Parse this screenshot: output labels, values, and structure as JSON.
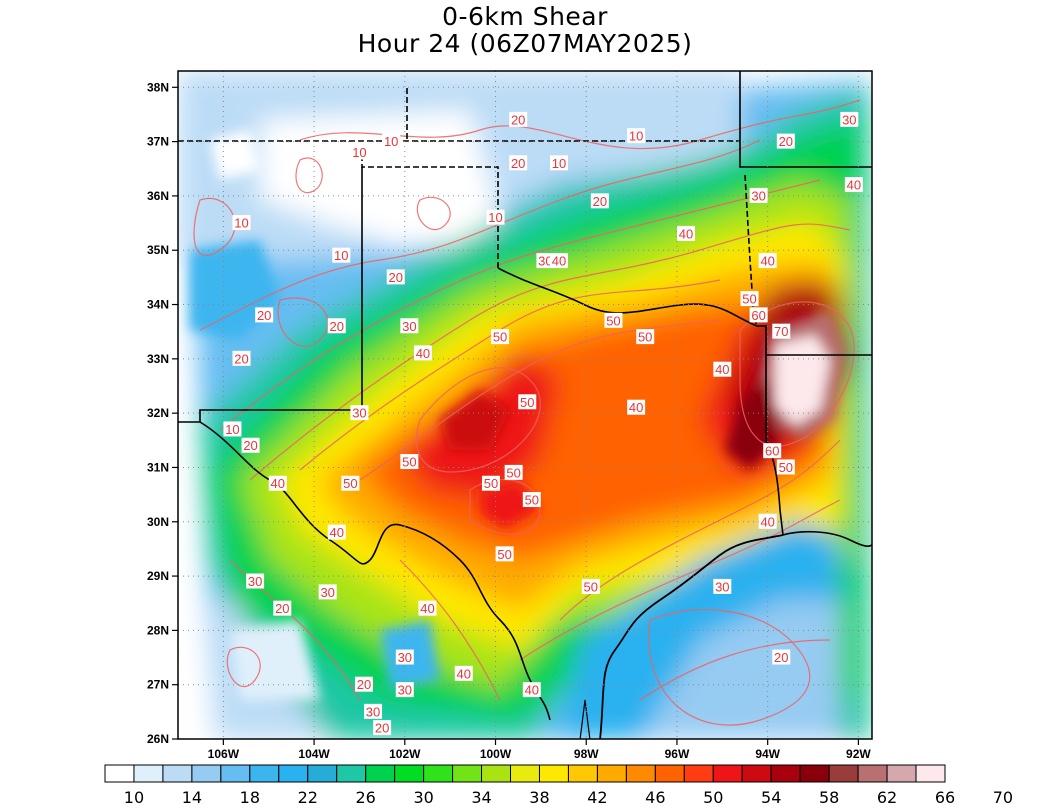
{
  "title": {
    "line1": "0-6km Shear",
    "line2": "Hour 24 (06Z07MAY2025)"
  },
  "map": {
    "lon_range": [
      -107.0,
      -91.7
    ],
    "lat_range": [
      26.0,
      38.3
    ],
    "lat_ticks": [
      {
        "value": 38,
        "label": "38N"
      },
      {
        "value": 37,
        "label": "37N"
      },
      {
        "value": 36,
        "label": "36N"
      },
      {
        "value": 35,
        "label": "35N"
      },
      {
        "value": 34,
        "label": "34N"
      },
      {
        "value": 33,
        "label": "33N"
      },
      {
        "value": 32,
        "label": "32N"
      },
      {
        "value": 31,
        "label": "31N"
      },
      {
        "value": 30,
        "label": "30N"
      },
      {
        "value": 29,
        "label": "29N"
      },
      {
        "value": 28,
        "label": "28N"
      },
      {
        "value": 27,
        "label": "27N"
      },
      {
        "value": 26,
        "label": "26N"
      }
    ],
    "lon_ticks": [
      {
        "value": -106,
        "label": "106W"
      },
      {
        "value": -104,
        "label": "104W"
      },
      {
        "value": -102,
        "label": "102W"
      },
      {
        "value": -100,
        "label": "100W"
      },
      {
        "value": -98,
        "label": "98W"
      },
      {
        "value": -96,
        "label": "96W"
      },
      {
        "value": -94,
        "label": "94W"
      },
      {
        "value": -92,
        "label": "92W"
      }
    ],
    "contour_labels": [
      {
        "text": "10",
        "lon": -102.3,
        "lat": 37.0
      },
      {
        "text": "20",
        "lon": -99.5,
        "lat": 37.4
      },
      {
        "text": "20",
        "lon": -99.5,
        "lat": 36.6
      },
      {
        "text": "10",
        "lon": -98.6,
        "lat": 36.6
      },
      {
        "text": "10",
        "lon": -96.9,
        "lat": 37.1
      },
      {
        "text": "20",
        "lon": -93.6,
        "lat": 37.0
      },
      {
        "text": "30",
        "lon": -92.2,
        "lat": 37.4
      },
      {
        "text": "10",
        "lon": -103.0,
        "lat": 36.8
      },
      {
        "text": "20",
        "lon": -97.7,
        "lat": 35.9
      },
      {
        "text": "30",
        "lon": -94.2,
        "lat": 36.0
      },
      {
        "text": "40",
        "lon": -92.1,
        "lat": 36.2
      },
      {
        "text": "10",
        "lon": -100.0,
        "lat": 35.6
      },
      {
        "text": "40",
        "lon": -95.8,
        "lat": 35.3
      },
      {
        "text": "10",
        "lon": -105.6,
        "lat": 35.5
      },
      {
        "text": "10",
        "lon": -103.4,
        "lat": 34.9
      },
      {
        "text": "30",
        "lon": -98.9,
        "lat": 34.8
      },
      {
        "text": "40",
        "lon": -98.6,
        "lat": 34.8
      },
      {
        "text": "40",
        "lon": -94.0,
        "lat": 34.8
      },
      {
        "text": "20",
        "lon": -102.2,
        "lat": 34.5
      },
      {
        "text": "50",
        "lon": -94.4,
        "lat": 34.1
      },
      {
        "text": "60",
        "lon": -94.2,
        "lat": 33.8
      },
      {
        "text": "20",
        "lon": -105.1,
        "lat": 33.8
      },
      {
        "text": "50",
        "lon": -97.4,
        "lat": 33.7
      },
      {
        "text": "30",
        "lon": -101.9,
        "lat": 33.6
      },
      {
        "text": "20",
        "lon": -103.5,
        "lat": 33.6
      },
      {
        "text": "70",
        "lon": -93.7,
        "lat": 33.5
      },
      {
        "text": "50",
        "lon": -99.9,
        "lat": 33.4
      },
      {
        "text": "50",
        "lon": -96.7,
        "lat": 33.4
      },
      {
        "text": "40",
        "lon": -101.6,
        "lat": 33.1
      },
      {
        "text": "20",
        "lon": -105.6,
        "lat": 33.0
      },
      {
        "text": "40",
        "lon": -95.0,
        "lat": 32.8
      },
      {
        "text": "50",
        "lon": -99.3,
        "lat": 32.2
      },
      {
        "text": "40",
        "lon": -96.9,
        "lat": 32.1
      },
      {
        "text": "30",
        "lon": -103.0,
        "lat": 32.0
      },
      {
        "text": "10",
        "lon": -105.8,
        "lat": 31.7
      },
      {
        "text": "20",
        "lon": -105.4,
        "lat": 31.4
      },
      {
        "text": "60",
        "lon": -93.9,
        "lat": 31.3
      },
      {
        "text": "50",
        "lon": -101.9,
        "lat": 31.1
      },
      {
        "text": "50",
        "lon": -93.6,
        "lat": 31.0
      },
      {
        "text": "50",
        "lon": -99.6,
        "lat": 30.9
      },
      {
        "text": "50",
        "lon": -100.1,
        "lat": 30.7
      },
      {
        "text": "40",
        "lon": -104.8,
        "lat": 30.7
      },
      {
        "text": "50",
        "lon": -103.2,
        "lat": 30.7
      },
      {
        "text": "50",
        "lon": -99.2,
        "lat": 30.4
      },
      {
        "text": "40",
        "lon": -94.0,
        "lat": 30.0
      },
      {
        "text": "40",
        "lon": -103.5,
        "lat": 29.8
      },
      {
        "text": "50",
        "lon": -99.8,
        "lat": 29.4
      },
      {
        "text": "30",
        "lon": -105.3,
        "lat": 28.9
      },
      {
        "text": "50",
        "lon": -97.9,
        "lat": 28.8
      },
      {
        "text": "30",
        "lon": -95.0,
        "lat": 28.8
      },
      {
        "text": "30",
        "lon": -103.7,
        "lat": 28.7
      },
      {
        "text": "20",
        "lon": -104.7,
        "lat": 28.4
      },
      {
        "text": "40",
        "lon": -101.5,
        "lat": 28.4
      },
      {
        "text": "30",
        "lon": -102.0,
        "lat": 27.5
      },
      {
        "text": "20",
        "lon": -93.7,
        "lat": 27.5
      },
      {
        "text": "40",
        "lon": -99.2,
        "lat": 26.9
      },
      {
        "text": "40",
        "lon": -100.7,
        "lat": 27.2
      },
      {
        "text": "20",
        "lon": -102.9,
        "lat": 27.0
      },
      {
        "text": "30",
        "lon": -102.0,
        "lat": 26.9
      },
      {
        "text": "30",
        "lon": -102.7,
        "lat": 26.5
      },
      {
        "text": "20",
        "lon": -102.5,
        "lat": 26.2
      }
    ]
  },
  "colorbar": {
    "colors": [
      "#ffffff",
      "#e0f0fb",
      "#bcdcf6",
      "#96cbf2",
      "#66bdf2",
      "#3cb5ef",
      "#2ab1ef",
      "#26acd6",
      "#1ec7a6",
      "#00d24e",
      "#00dd22",
      "#2ee31c",
      "#70e416",
      "#a9e412",
      "#e8ec0e",
      "#ffe800",
      "#ffc800",
      "#ffaa00",
      "#ff8a00",
      "#ff6200",
      "#ff3c14",
      "#ee1418",
      "#cc0a10",
      "#a8000c",
      "#8a000a",
      "#9a3c3c",
      "#b87070",
      "#d6a8ae",
      "#fde8ec"
    ],
    "labels": [
      "10",
      "14",
      "18",
      "22",
      "26",
      "30",
      "34",
      "38",
      "42",
      "46",
      "50",
      "54",
      "58",
      "62",
      "66",
      "70"
    ]
  }
}
